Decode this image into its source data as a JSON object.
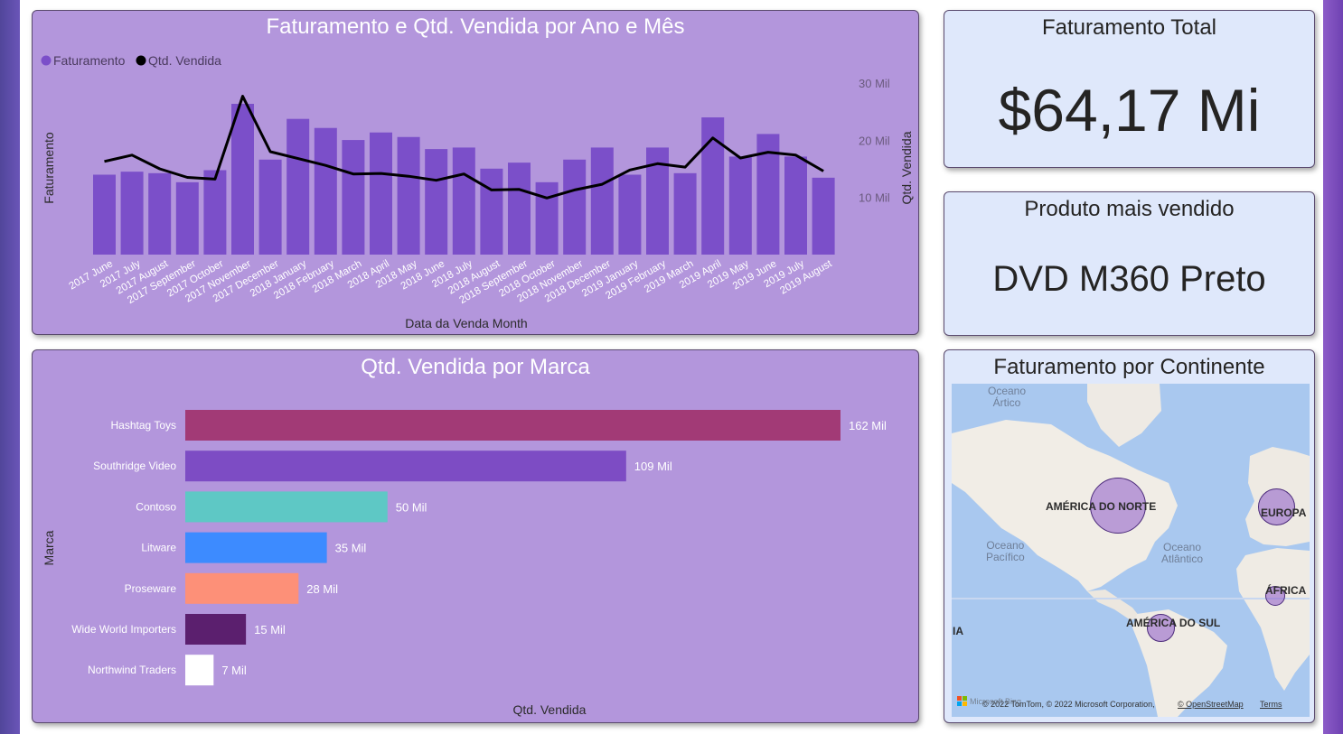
{
  "colors": {
    "panel_purple": "#b396dc",
    "panel_light": "#dfe8fb",
    "bar_purple": "#7b4fc9",
    "line_black": "#000000"
  },
  "combo_chart": {
    "title": "Faturamento e Qtd. Vendida por Ano e Mês",
    "legend": [
      "Faturamento",
      "Qtd. Vendida"
    ],
    "y_left_label": "Faturamento",
    "y_right_label": "Qtd. Vendida",
    "x_label": "Data da Venda Month",
    "y_right_ticks": [
      "10 Mil",
      "20 Mil",
      "30 Mil"
    ]
  },
  "brand_chart": {
    "title": "Qtd. Vendida por Marca",
    "y_label": "Marca",
    "x_label": "Qtd. Vendida"
  },
  "kpi_total": {
    "title": "Faturamento Total",
    "value": "$64,17 Mi"
  },
  "kpi_product": {
    "title": "Produto mais vendido",
    "value": "DVD M360 Preto"
  },
  "map": {
    "title": "Faturamento por Continente",
    "labels": {
      "north_america": "AMÉRICA DO NORTE",
      "europe": "EUROPA",
      "africa": "ÁFRICA",
      "south_america": "AMÉRICA DO SUL",
      "asia_partial": "IA"
    },
    "oceans": {
      "arctic": "Oceano\nÁrtico",
      "pacific": "Oceano\nPacífico",
      "atlantic": "Oceano\nAtlântico"
    },
    "attribution": "© 2022 TomTom, © 2022 Microsoft Corporation,",
    "osm_link": "© OpenStreetMap",
    "terms_link": "Terms",
    "logo_text": "Microsoft Bing"
  },
  "chart_data": [
    {
      "type": "bar",
      "subtype": "combo bar + line",
      "title": "Faturamento e Qtd. Vendida por Ano e Mês",
      "xlabel": "Data da Venda Month",
      "ylabel": "Faturamento",
      "y2label": "Qtd. Vendida",
      "legend": "top-left",
      "y2lim": [
        0,
        30000
      ],
      "y2ticks": [
        10000,
        20000,
        30000
      ],
      "categories": [
        "2017 June",
        "2017 July",
        "2017 August",
        "2017 September",
        "2017 October",
        "2017 November",
        "2017 December",
        "2018 January",
        "2018 February",
        "2018 March",
        "2018 April",
        "2018 May",
        "2018 June",
        "2018 July",
        "2018 August",
        "2018 September",
        "2018 October",
        "2018 November",
        "2018 December",
        "2019 January",
        "2019 February",
        "2019 March",
        "2019 April",
        "2019 May",
        "2019 June",
        "2019 July",
        "2019 August"
      ],
      "series": [
        {
          "name": "Faturamento",
          "kind": "bar",
          "relative_values": [
            0.53,
            0.55,
            0.54,
            0.48,
            0.56,
            1.0,
            0.63,
            0.9,
            0.84,
            0.76,
            0.81,
            0.78,
            0.7,
            0.71,
            0.57,
            0.61,
            0.48,
            0.63,
            0.71,
            0.53,
            0.71,
            0.54,
            0.91,
            0.65,
            0.8,
            0.65,
            0.51
          ]
        },
        {
          "name": "Qtd. Vendida",
          "kind": "line",
          "values": [
            16300,
            17400,
            15000,
            13500,
            13200,
            27700,
            18000,
            16800,
            15600,
            14100,
            14200,
            13700,
            13000,
            14100,
            11300,
            11400,
            9900,
            11300,
            12300,
            14800,
            15900,
            15300,
            20400,
            16900,
            17900,
            17400,
            14600
          ]
        }
      ]
    },
    {
      "type": "bar",
      "orientation": "horizontal",
      "title": "Qtd. Vendida por Marca",
      "xlabel": "Qtd. Vendida",
      "ylabel": "Marca",
      "categories": [
        "Hashtag Toys",
        "Southridge Video",
        "Contoso",
        "Litware",
        "Proseware",
        "Wide World Importers",
        "Northwind Traders"
      ],
      "values": [
        162000,
        109000,
        50000,
        35000,
        28000,
        15000,
        7000
      ],
      "value_labels": [
        "162 Mil",
        "109 Mil",
        "50 Mil",
        "35 Mil",
        "28 Mil",
        "15 Mil",
        "7 Mil"
      ],
      "colors": [
        "#a23a76",
        "#7d4cc4",
        "#5ec8c5",
        "#3d8bff",
        "#fd9078",
        "#5b1f6e",
        "#ffffff"
      ]
    },
    {
      "type": "scatter",
      "subtype": "bubble map",
      "title": "Faturamento por Continente",
      "categories": [
        "AMÉRICA DO NORTE",
        "EUROPA",
        "ÁFRICA",
        "AMÉRICA DO SUL"
      ],
      "relative_size": [
        1.0,
        0.66,
        0.35,
        0.49
      ]
    }
  ]
}
